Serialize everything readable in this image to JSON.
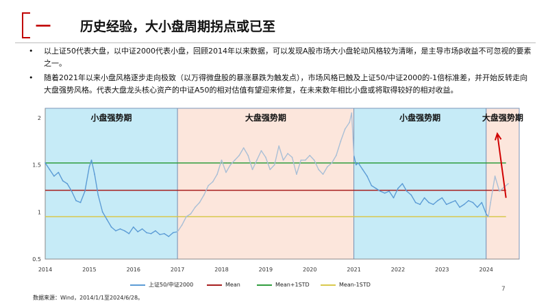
{
  "header": {
    "section_number": "一",
    "title": "历史经验，大小盘周期拐点或已至"
  },
  "bullets": [
    "以上证50代表大盘，以中证2000代表小盘，回顾2014年以来数据，可以发现A股市场大小盘轮动风格较为清晰，是主导市场β收益不可忽视的要素之一。",
    "随着2021年以来小盘风格逐步走向极致（以万得微盘股的暴涨暴跌为触发点），市场风格已触及上证50/中证2000的-1倍标准差，并开始反转走向大盘强势风格。代表大盘龙头核心资产的中证A50的相对估值有望迎来修复，在未来数年相比小盘或将取得较好的相对收益。"
  ],
  "chart_data": {
    "type": "line",
    "xlabel": "",
    "ylabel": "",
    "xlim": [
      2014.0,
      2024.75
    ],
    "ylim": [
      0.5,
      2.1
    ],
    "x_ticks": [
      "2014",
      "2015",
      "2016",
      "2017",
      "2018",
      "2019",
      "2020",
      "2021",
      "2022",
      "2023",
      "2024"
    ],
    "y_ticks": [
      "0.5",
      "1",
      "1.5",
      "2"
    ],
    "periods": [
      {
        "label": "小盘强势期",
        "start": 2014.0,
        "end": 2017.0,
        "color": "#c6ebf7"
      },
      {
        "label": "大盘强势期",
        "start": 2017.0,
        "end": 2021.0,
        "color": "#fce6dc"
      },
      {
        "label": "小盘强势期",
        "start": 2021.0,
        "end": 2024.0,
        "color": "#c6ebf7"
      },
      {
        "label": "大盘强势期",
        "start": 2024.0,
        "end": 2024.75,
        "color": "#fce6dc"
      }
    ],
    "reference_lines": [
      {
        "name": "Mean",
        "value": 1.23,
        "color": "#a61c1c"
      },
      {
        "name": "Mean+1STD",
        "value": 1.52,
        "color": "#2e9c3c"
      },
      {
        "name": "Mean-1STD",
        "value": 0.95,
        "color": "#d8c84c"
      }
    ],
    "series": [
      {
        "name": "上证50/中证2000",
        "color": "#5b9bd5",
        "faded_color": "#a9bfd6",
        "x": [
          2014.0,
          2014.1,
          2014.2,
          2014.3,
          2014.4,
          2014.5,
          2014.6,
          2014.7,
          2014.8,
          2014.9,
          2015.0,
          2015.05,
          2015.12,
          2015.2,
          2015.3,
          2015.4,
          2015.5,
          2015.6,
          2015.7,
          2015.8,
          2015.9,
          2016.0,
          2016.1,
          2016.2,
          2016.3,
          2016.4,
          2016.5,
          2016.6,
          2016.7,
          2016.8,
          2016.9,
          2017.0,
          2017.1,
          2017.2,
          2017.3,
          2017.4,
          2017.5,
          2017.6,
          2017.7,
          2017.8,
          2017.9,
          2018.0,
          2018.1,
          2018.2,
          2018.3,
          2018.4,
          2018.5,
          2018.6,
          2018.7,
          2018.8,
          2018.9,
          2019.0,
          2019.1,
          2019.2,
          2019.3,
          2019.4,
          2019.5,
          2019.6,
          2019.7,
          2019.8,
          2019.9,
          2020.0,
          2020.1,
          2020.2,
          2020.3,
          2020.4,
          2020.5,
          2020.6,
          2020.7,
          2020.8,
          2020.9,
          2020.95,
          2021.0,
          2021.05,
          2021.1,
          2021.2,
          2021.3,
          2021.4,
          2021.5,
          2021.6,
          2021.7,
          2021.8,
          2021.9,
          2022.0,
          2022.1,
          2022.2,
          2022.3,
          2022.4,
          2022.5,
          2022.6,
          2022.7,
          2022.8,
          2022.9,
          2023.0,
          2023.1,
          2023.2,
          2023.3,
          2023.4,
          2023.5,
          2023.6,
          2023.7,
          2023.8,
          2023.9,
          2024.0,
          2024.05,
          2024.1,
          2024.2,
          2024.3,
          2024.4,
          2024.5
        ],
        "y": [
          1.52,
          1.45,
          1.38,
          1.42,
          1.33,
          1.3,
          1.22,
          1.12,
          1.1,
          1.22,
          1.48,
          1.55,
          1.4,
          1.18,
          1.0,
          0.92,
          0.84,
          0.8,
          0.82,
          0.8,
          0.77,
          0.84,
          0.79,
          0.82,
          0.78,
          0.77,
          0.8,
          0.76,
          0.77,
          0.74,
          0.78,
          0.79,
          0.86,
          0.95,
          0.98,
          1.05,
          1.1,
          1.18,
          1.28,
          1.32,
          1.4,
          1.55,
          1.42,
          1.5,
          1.55,
          1.6,
          1.68,
          1.6,
          1.45,
          1.55,
          1.65,
          1.58,
          1.45,
          1.5,
          1.7,
          1.55,
          1.62,
          1.58,
          1.4,
          1.55,
          1.55,
          1.6,
          1.55,
          1.45,
          1.4,
          1.48,
          1.52,
          1.6,
          1.75,
          1.88,
          1.95,
          2.05,
          1.6,
          1.5,
          1.52,
          1.45,
          1.38,
          1.28,
          1.25,
          1.22,
          1.2,
          1.22,
          1.15,
          1.25,
          1.3,
          1.22,
          1.18,
          1.1,
          1.08,
          1.15,
          1.1,
          1.08,
          1.12,
          1.15,
          1.08,
          1.1,
          1.12,
          1.05,
          1.08,
          1.12,
          1.1,
          1.05,
          1.1,
          0.98,
          0.95,
          1.1,
          1.38,
          1.22,
          1.26,
          1.3
        ],
        "faded_ranges": [
          [
            2017.0,
            2021.0
          ],
          [
            2024.05,
            2024.5
          ]
        ]
      }
    ],
    "annotation": {
      "type": "arrow",
      "color": "#d00000"
    },
    "legend_position": "bottom"
  },
  "legend": [
    {
      "label": "上证50/中证2000",
      "color": "#5b9bd5"
    },
    {
      "label": "Mean",
      "color": "#a61c1c"
    },
    {
      "label": "Mean+1STD",
      "color": "#2e9c3c"
    },
    {
      "label": "Mean-1STD",
      "color": "#d8c84c"
    }
  ],
  "source_note": "数据来源：Wind，2014/1/1至2024/6/28。",
  "page_number": "7"
}
